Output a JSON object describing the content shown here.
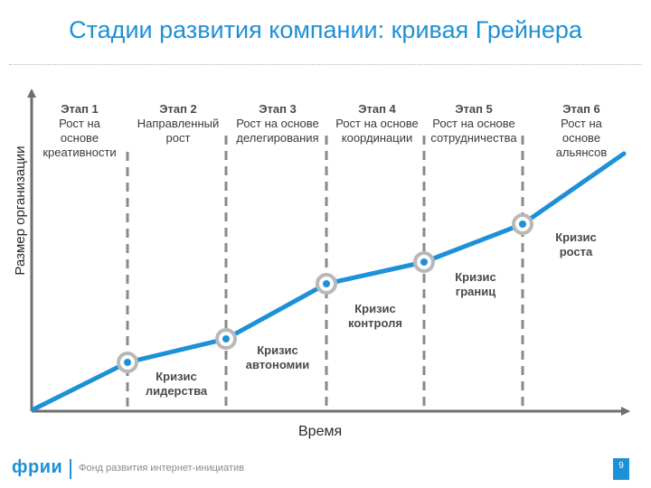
{
  "title": "Стадии развития компании: кривая Грейнера",
  "axes": {
    "y_label": "Размер организации",
    "x_label": "Время"
  },
  "stages": [
    {
      "heading": "Этап 1",
      "lines": [
        "Рост на",
        "основе",
        "креативности"
      ]
    },
    {
      "heading": "Этап 2",
      "lines": [
        "Направленный",
        "рост"
      ]
    },
    {
      "heading": "Этап 3",
      "lines": [
        "Рост на основе",
        "делегирования"
      ]
    },
    {
      "heading": "Этап 4",
      "lines": [
        "Рост на основе",
        "координации"
      ]
    },
    {
      "heading": "Этап 5",
      "lines": [
        "Рост на основе",
        "сотрудничества"
      ]
    },
    {
      "heading": "Этап 6",
      "lines": [
        "Рост на",
        "основе",
        "альянсов"
      ]
    }
  ],
  "crises": [
    {
      "lines": [
        "Кризис",
        "лидерства"
      ]
    },
    {
      "lines": [
        "Кризис",
        "автономии"
      ]
    },
    {
      "lines": [
        "Кризис",
        "контроля"
      ]
    },
    {
      "lines": [
        "Кризис",
        "границ"
      ]
    },
    {
      "lines": [
        "Кризис",
        "роста"
      ]
    }
  ],
  "footer": {
    "logo": "фрии",
    "org": "Фонд развития интернет-инициатив",
    "page": "9"
  },
  "colors": {
    "accent": "#1e90d8",
    "divider": "#8a8a8a",
    "node_ring": "#b8b8b8",
    "axis": "#6f6f6f"
  }
}
